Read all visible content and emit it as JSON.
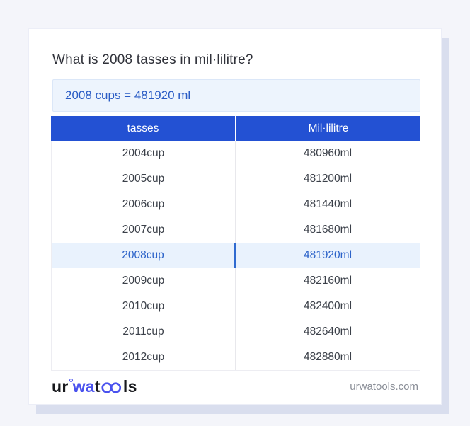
{
  "title": "What is 2008 tasses in mil·lilitre?",
  "answer": "2008 cups = 481920 ml",
  "table": {
    "headers": [
      "tasses",
      "Mil·lilitre"
    ],
    "highlighted_index": 4,
    "rows": [
      {
        "tasses": "2004cup",
        "ml": "480960ml"
      },
      {
        "tasses": "2005cup",
        "ml": "481200ml"
      },
      {
        "tasses": "2006cup",
        "ml": "481440ml"
      },
      {
        "tasses": "2007cup",
        "ml": "481680ml"
      },
      {
        "tasses": "2008cup",
        "ml": "481920ml"
      },
      {
        "tasses": "2009cup",
        "ml": "482160ml"
      },
      {
        "tasses": "2010cup",
        "ml": "482400ml"
      },
      {
        "tasses": "2011cup",
        "ml": "482640ml"
      },
      {
        "tasses": "2012cup",
        "ml": "482880ml"
      }
    ]
  },
  "footer": {
    "logo": {
      "part1": "ur",
      "part2": "wa",
      "part3": "t",
      "part4": "ls"
    },
    "domain": "urwatools.com"
  },
  "colors": {
    "page_bg": "#f4f5fa",
    "header_bg": "#2351d3",
    "answer_bg": "#edf4fd",
    "answer_text": "#2a5cc5",
    "highlight_bg": "#e9f2fd",
    "highlight_text": "#2c63c9",
    "logo_blue": "#4a52ee",
    "domain_text": "#8b8f98"
  }
}
